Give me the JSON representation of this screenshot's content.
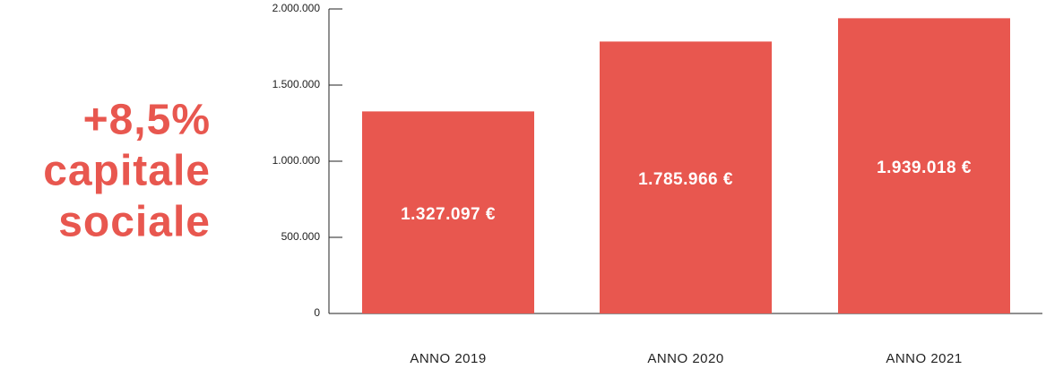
{
  "chart_data": {
    "type": "bar",
    "annotations": [
      "+8,5%",
      "capitale",
      "sociale"
    ],
    "categories": [
      "ANNO 2019",
      "ANNO 2020",
      "ANNO 2021"
    ],
    "values": [
      1327097,
      1785966,
      1939018
    ],
    "value_labels": [
      "1.327.097 €",
      "1.785.966 €",
      "1.939.018 €"
    ],
    "color": "#e8574f",
    "ylim": [
      0,
      2000000
    ],
    "yticks": [
      0,
      {
        "value": 500000,
        "label": "500.000"
      },
      {
        "value": 1000000,
        "label": "1.000.000"
      },
      {
        "value": 1500000,
        "label": "1.500.000"
      },
      {
        "value": 2000000,
        "label": "2.000.000"
      }
    ],
    "grid": false
  }
}
